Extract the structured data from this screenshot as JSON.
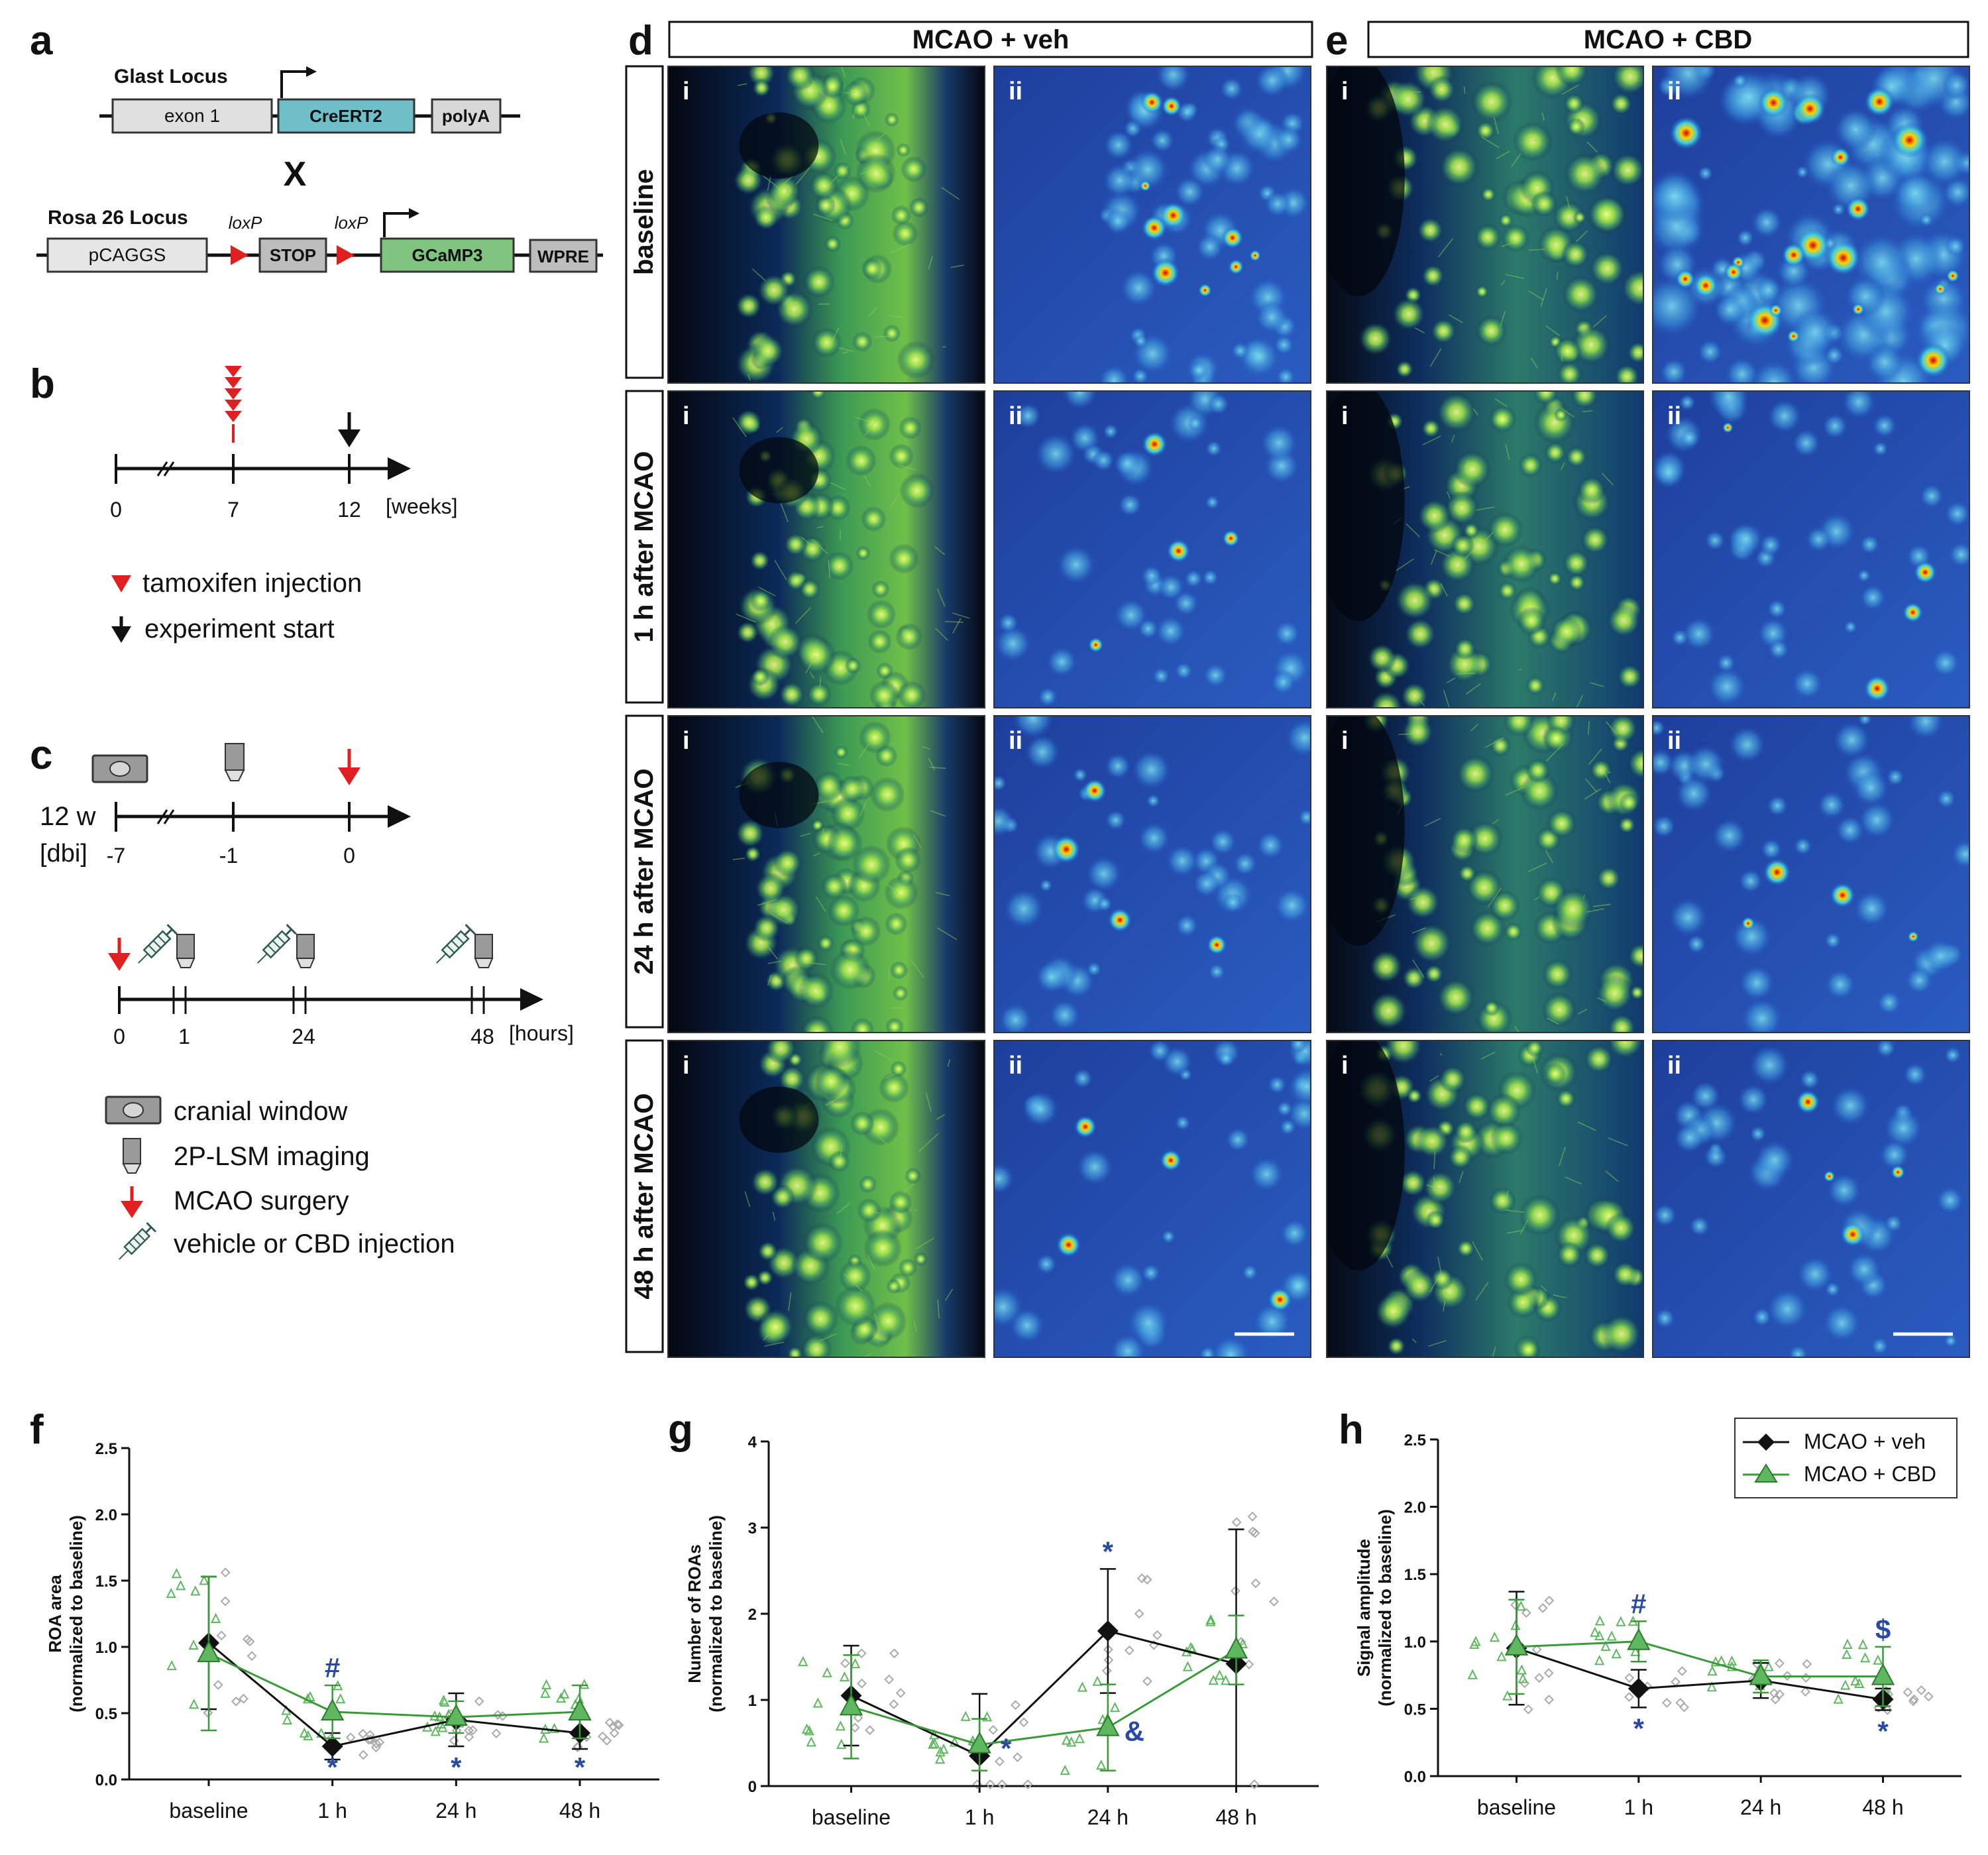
{
  "panel_letters": {
    "a": "a",
    "b": "b",
    "c": "c",
    "d": "d",
    "e": "e",
    "f": "f",
    "g": "g",
    "h": "h"
  },
  "panel_a": {
    "glast_locus": "Glast Locus",
    "exon1": "exon 1",
    "creert2": "CreERT2",
    "polya": "polyA",
    "cross": "X",
    "rosa_locus": "Rosa 26 Locus",
    "pcaggs": "pCAGGS",
    "loxp1": "loxP",
    "loxp2": "loxP",
    "stop": "STOP",
    "gcamp3": "GCaMP3",
    "wpre": "WPRE"
  },
  "panel_b": {
    "ticks": [
      "0",
      "7",
      "12"
    ],
    "unit": "[weeks]",
    "legend_tamoxifen": "tamoxifen injection",
    "legend_experiment": "experiment start",
    "tamoxifen_injections": 5
  },
  "panel_c": {
    "week_label": "12 w",
    "dbi_label": "[dbi]",
    "ticks_days": [
      "-7",
      "-1",
      "0"
    ],
    "ticks_hours": [
      "0",
      "1",
      "24",
      "48"
    ],
    "hours_unit": "[hours]",
    "legend_window": "cranial window",
    "legend_imaging": "2P-LSM imaging",
    "legend_mcao": "MCAO surgery",
    "legend_injection": "vehicle or CBD injection"
  },
  "panel_d": {
    "title": "MCAO + veh"
  },
  "panel_e": {
    "title": "MCAO + CBD"
  },
  "image_rows": [
    "baseline",
    "1 h after MCAO",
    "24 h after MCAO",
    "48 h after MCAO"
  ],
  "subpanel_i": "i",
  "subpanel_ii": "ii",
  "colors": {
    "veh": "#111111",
    "cbd": "#3a9a3a",
    "cbd_fill": "#5fb85f",
    "stat_blue": "#2a4aa0",
    "grid": "#999999"
  },
  "legend": {
    "veh": "MCAO + veh",
    "cbd": "MCAO + CBD"
  },
  "chart_data": [
    {
      "panel": "f",
      "type": "line",
      "categories": [
        "baseline",
        "1 h",
        "24 h",
        "48 h"
      ],
      "ylabel": "ROA area (normalized to baseline)",
      "ylim": [
        0,
        2.5
      ],
      "yticks": [
        "0.0",
        "0.5",
        "1.0",
        "1.5",
        "2.0",
        "2.5"
      ],
      "series": [
        {
          "name": "MCAO + veh",
          "values": [
            1.03,
            0.25,
            0.45,
            0.35
          ],
          "sd": [
            0.5,
            0.1,
            0.2,
            0.12
          ]
        },
        {
          "name": "MCAO + CBD",
          "values": [
            0.95,
            0.51,
            0.47,
            0.51
          ],
          "sd": [
            0.58,
            0.2,
            0.12,
            0.2
          ]
        }
      ],
      "annotations": [
        {
          "x": "1 h",
          "symbol": "#",
          "pos": "above"
        },
        {
          "x": "1 h",
          "symbol": "*",
          "pos": "below"
        },
        {
          "x": "24 h",
          "symbol": "*",
          "pos": "below"
        },
        {
          "x": "48 h",
          "symbol": "*",
          "pos": "below"
        }
      ]
    },
    {
      "panel": "g",
      "type": "line",
      "categories": [
        "baseline",
        "1 h",
        "24 h",
        "48 h"
      ],
      "ylabel": "Number of ROAs (normalized to baseline)",
      "ylim": [
        0,
        4
      ],
      "yticks": [
        "0",
        "1",
        "2",
        "3",
        "4"
      ],
      "series": [
        {
          "name": "MCAO + veh",
          "values": [
            1.05,
            0.35,
            1.8,
            1.42
          ],
          "sd": [
            0.58,
            0.72,
            0.72,
            1.56
          ]
        },
        {
          "name": "MCAO + CBD",
          "values": [
            0.92,
            0.48,
            0.68,
            1.58
          ],
          "sd": [
            0.6,
            0.3,
            0.5,
            0.4
          ]
        }
      ],
      "annotations": [
        {
          "x": "1 h",
          "symbol": "*",
          "pos": "right"
        },
        {
          "x": "24 h",
          "symbol": "*",
          "pos": "above"
        },
        {
          "x": "24 h",
          "symbol": "&",
          "pos": "right"
        }
      ]
    },
    {
      "panel": "h",
      "type": "line",
      "categories": [
        "baseline",
        "1 h",
        "24 h",
        "48 h"
      ],
      "ylabel": "Signal amplitude (normalized to baseline)",
      "ylim": [
        0,
        2.5
      ],
      "yticks": [
        "0.0",
        "0.5",
        "1.0",
        "1.5",
        "2.0",
        "2.5"
      ],
      "series": [
        {
          "name": "MCAO + veh",
          "values": [
            0.95,
            0.65,
            0.71,
            0.57
          ],
          "sd": [
            0.42,
            0.14,
            0.13,
            0.08
          ]
        },
        {
          "name": "MCAO + CBD",
          "values": [
            0.96,
            1.0,
            0.74,
            0.74
          ],
          "sd": [
            0.35,
            0.15,
            0.12,
            0.22
          ]
        }
      ],
      "annotations": [
        {
          "x": "1 h",
          "symbol": "#",
          "pos": "above"
        },
        {
          "x": "1 h",
          "symbol": "*",
          "pos": "below"
        },
        {
          "x": "48 h",
          "symbol": "$",
          "pos": "above"
        },
        {
          "x": "48 h",
          "symbol": "*",
          "pos": "below"
        }
      ]
    }
  ]
}
